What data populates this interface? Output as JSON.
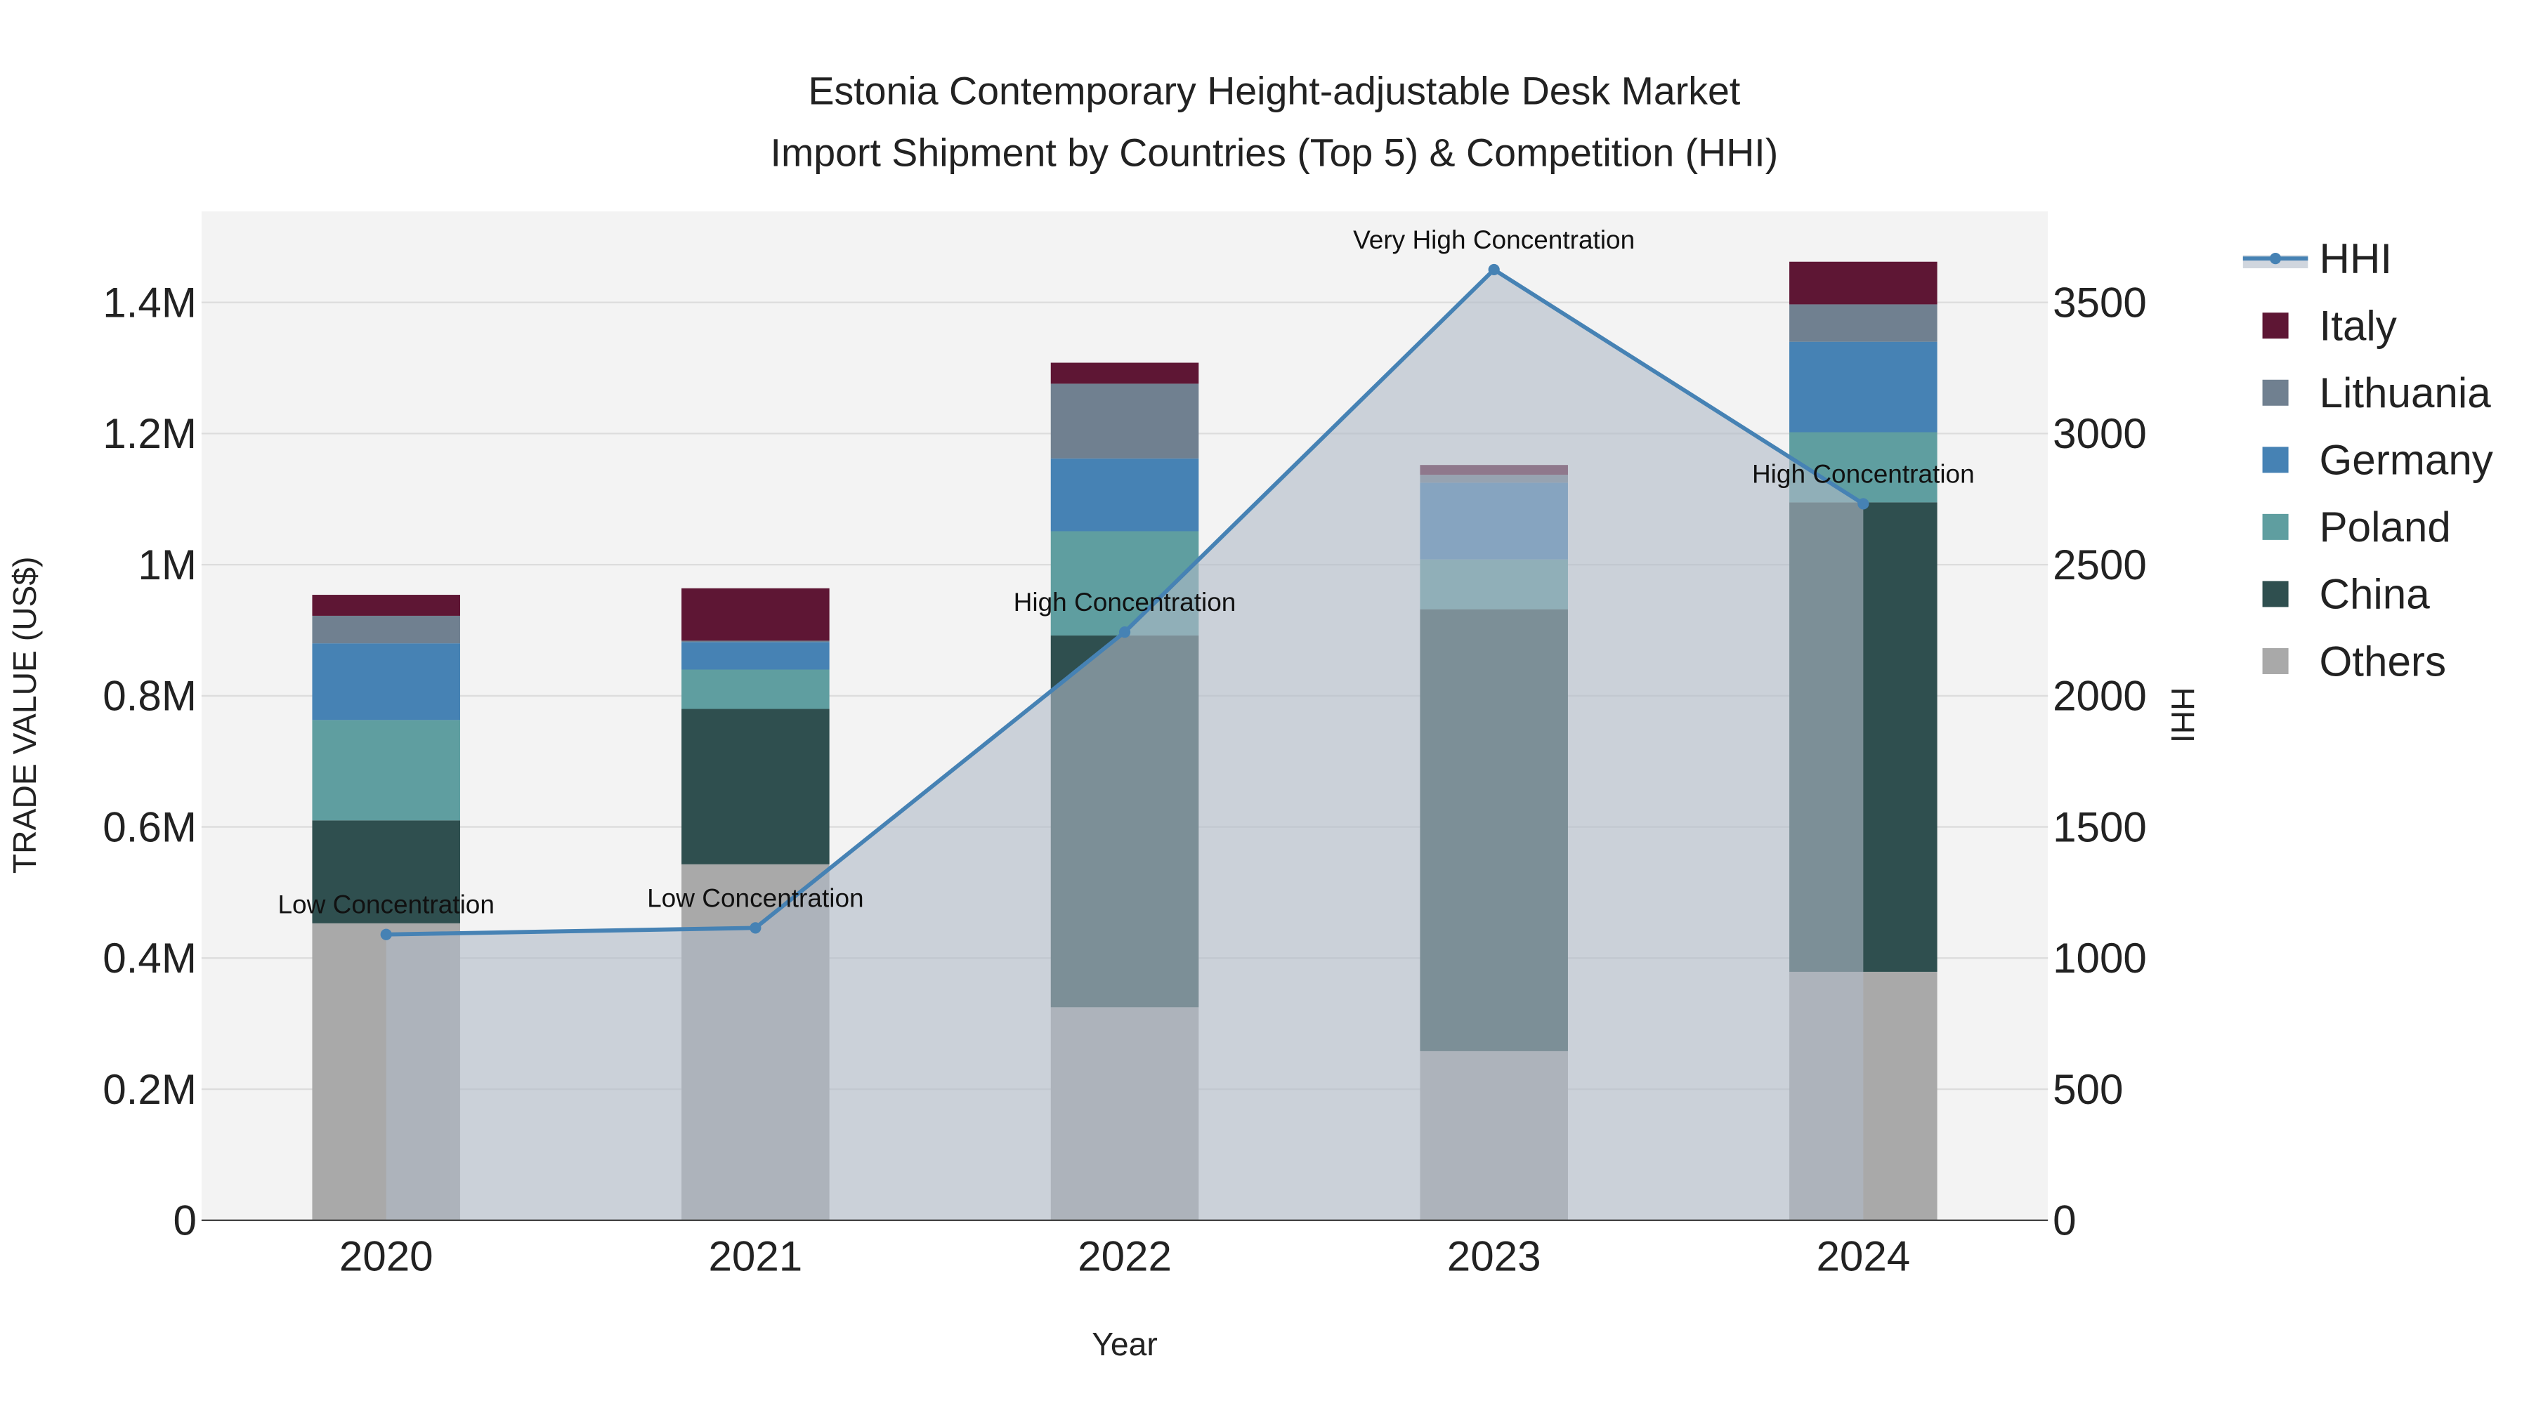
{
  "chart_data": {
    "type": "bar",
    "title": [
      "Estonia Contemporary Height-adjustable Desk Market",
      "Import Shipment by Countries (Top 5) & Competition (HHI)"
    ],
    "xlabel": "Year",
    "ylabel": "TRADE VALUE (US$)",
    "y2label": "HHI",
    "categories": [
      "2020",
      "2021",
      "2022",
      "2023",
      "2024"
    ],
    "ylim": [
      0,
      1540000
    ],
    "y2lim": [
      0,
      3820
    ],
    "yticks": [
      0,
      200000,
      400000,
      600000,
      800000,
      1000000,
      1200000,
      1400000
    ],
    "ytick_labels": [
      "0",
      "0.2M",
      "0.4M",
      "0.6M",
      "0.8M",
      "1M",
      "1.2M",
      "1.4M"
    ],
    "y2ticks": [
      0,
      500,
      1000,
      1500,
      2000,
      2500,
      3000,
      3500
    ],
    "y2tick_labels": [
      "0",
      "500",
      "1000",
      "1500",
      "2000",
      "2500",
      "3000",
      "3500"
    ],
    "grid": true,
    "legend_position": "right",
    "stack_order_bottom_to_top": [
      "Others",
      "China",
      "Poland",
      "Germany",
      "Lithuania",
      "Italy"
    ],
    "series": [
      {
        "name": "Others",
        "color": "#a9a9a9",
        "values": [
          453000,
          543000,
          325000,
          258000,
          379000
        ]
      },
      {
        "name": "China",
        "color": "#2f4f4f",
        "values": [
          157000,
          237000,
          567000,
          674000,
          716000
        ]
      },
      {
        "name": "Poland",
        "color": "#5f9ea0",
        "values": [
          153000,
          60000,
          159000,
          76000,
          107000
        ]
      },
      {
        "name": "Germany",
        "color": "#4682b4",
        "values": [
          117000,
          42000,
          111000,
          117000,
          138000
        ]
      },
      {
        "name": "Lithuania",
        "color": "#708090",
        "values": [
          42000,
          2000,
          114000,
          12000,
          57000
        ]
      },
      {
        "name": "Italy",
        "color": "#5e1634",
        "values": [
          32000,
          80000,
          32000,
          15000,
          65000
        ]
      }
    ],
    "hhi": {
      "name": "HHI",
      "color": "#4682b4",
      "values": [
        1090,
        1115,
        2243,
        3625,
        2732
      ],
      "annotations": [
        "Low Concentration",
        "Low Concentration",
        "High Concentration",
        "Very High Concentration",
        "High Concentration"
      ]
    },
    "legend": [
      "HHI",
      "Italy",
      "Lithuania",
      "Germany",
      "Poland",
      "China",
      "Others"
    ]
  }
}
